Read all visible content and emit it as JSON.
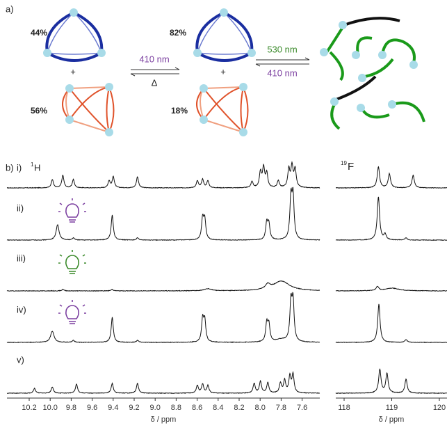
{
  "panel_a": {
    "label": "a)",
    "left_percentages": [
      "44%",
      "56%"
    ],
    "middle_percentages": [
      "82%",
      "18%"
    ],
    "plus_signs": [
      "+",
      "+"
    ],
    "arrow_1": {
      "top": "410 nm",
      "bottom": "Δ"
    },
    "arrow_2": {
      "top": "530 nm",
      "bottom": "410 nm"
    }
  },
  "panel_b": {
    "label": "b)",
    "rows": [
      "i)",
      "ii)",
      "iii)",
      "iv)",
      "v)"
    ],
    "nucleus_h": {
      "mass": "1",
      "symbol": "H"
    },
    "nucleus_f": {
      "mass": "19",
      "symbol": "F"
    },
    "h_axis": {
      "ticks": [
        "10.2",
        "10.0",
        "9.8",
        "9.6",
        "9.4",
        "9.2",
        "9.0",
        "8.8",
        "8.6",
        "8.4",
        "8.2",
        "8.0",
        "7.8",
        "7.6"
      ],
      "label": "δ / ppm"
    },
    "f_axis": {
      "ticks": [
        "118",
        "119",
        "120"
      ],
      "label": "δ / ppm"
    }
  }
}
